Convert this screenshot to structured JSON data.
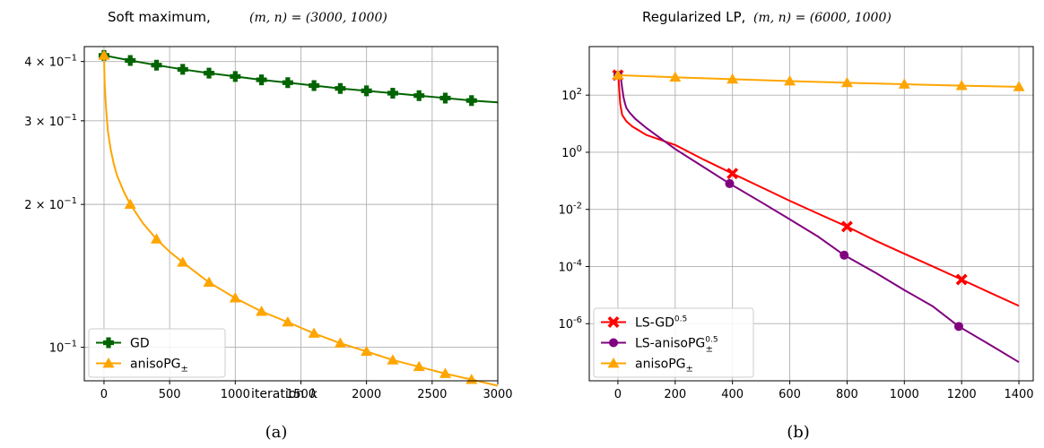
{
  "chart_data": [
    {
      "type": "line",
      "panel_label": "(a)",
      "title": "Soft maximum,",
      "title_math": "(m, n) = (3000, 1000)",
      "xlabel": "iteration",
      "xlabel_math": "k",
      "ylabel": "",
      "yscale": "log",
      "xlim": [
        -150,
        3000
      ],
      "ylim": [
        0.085,
        0.43
      ],
      "grid": true,
      "legend_position": "lower-left",
      "x_ticks": [
        "0",
        "500",
        "1000",
        "1500",
        "2000",
        "2500",
        "3000"
      ],
      "x_tick_values": [
        0,
        500,
        1000,
        1500,
        2000,
        2500,
        3000
      ],
      "y_ticks": [
        {
          "value": 0.4,
          "mantissa": "4",
          "exp": "−1"
        },
        {
          "value": 0.3,
          "mantissa": "3",
          "exp": "−1"
        },
        {
          "value": 0.2,
          "mantissa": "2",
          "exp": "−1"
        },
        {
          "value": 0.1,
          "mantissa": "10",
          "exp": "−1"
        }
      ],
      "series": [
        {
          "name": "GD",
          "sub": "",
          "sup": "",
          "color": "#006400",
          "marker": "plus",
          "x": [
            0,
            200,
            400,
            600,
            800,
            1000,
            1200,
            1400,
            1600,
            1800,
            2000,
            2200,
            2400,
            2600,
            2800,
            3000
          ],
          "y": [
            0.412,
            0.402,
            0.393,
            0.385,
            0.378,
            0.372,
            0.366,
            0.361,
            0.356,
            0.351,
            0.347,
            0.343,
            0.339,
            0.335,
            0.331,
            0.328
          ],
          "markers_x": [
            0,
            200,
            400,
            600,
            800,
            1000,
            1200,
            1400,
            1600,
            1800,
            2000,
            2200,
            2400,
            2600,
            2800
          ]
        },
        {
          "name": "anisoPG",
          "sub": "±",
          "sup": "",
          "color": "#FFA500",
          "marker": "triangle",
          "x": [
            0,
            5,
            15,
            30,
            50,
            75,
            100,
            150,
            200,
            300,
            400,
            500,
            600,
            800,
            1000,
            1200,
            1400,
            1600,
            1800,
            2000,
            2200,
            2400,
            2600,
            2800,
            3000
          ],
          "y": [
            0.412,
            0.36,
            0.32,
            0.285,
            0.262,
            0.243,
            0.23,
            0.213,
            0.2,
            0.182,
            0.169,
            0.159,
            0.151,
            0.137,
            0.127,
            0.119,
            0.113,
            0.107,
            0.102,
            0.098,
            0.094,
            0.091,
            0.088,
            0.0855,
            0.083
          ],
          "markers_x": [
            0,
            200,
            400,
            600,
            800,
            1000,
            1200,
            1400,
            1600,
            1800,
            2000,
            2200,
            2400,
            2600,
            2800
          ]
        }
      ]
    },
    {
      "type": "line",
      "panel_label": "(b)",
      "title": "Regularized LP,",
      "title_math": "(m, n) = (6000, 1000)",
      "xlabel": "",
      "ylabel": "",
      "yscale": "log",
      "xlim": [
        -100,
        1450
      ],
      "ylim": [
        1e-08,
        5000
      ],
      "grid": true,
      "legend_position": "lower-left",
      "x_ticks": [
        "0",
        "200",
        "400",
        "600",
        "800",
        "1000",
        "1200",
        "1400"
      ],
      "x_tick_values": [
        0,
        200,
        400,
        600,
        800,
        1000,
        1200,
        1400
      ],
      "y_ticks": [
        {
          "value": 100,
          "mantissa": "10",
          "exp": "2"
        },
        {
          "value": 1,
          "mantissa": "10",
          "exp": "0"
        },
        {
          "value": 0.01,
          "mantissa": "10",
          "exp": "-2"
        },
        {
          "value": 0.0001,
          "mantissa": "10",
          "exp": "-4"
        },
        {
          "value": 1e-06,
          "mantissa": "10",
          "exp": "-6"
        }
      ],
      "series": [
        {
          "name": "LS-GD",
          "sub": "",
          "sup": "0.5",
          "color": "#FF0000",
          "marker": "x",
          "x": [
            0,
            3,
            8,
            15,
            30,
            50,
            100,
            200,
            300,
            400,
            500,
            600,
            700,
            800,
            900,
            1000,
            1100,
            1200,
            1300,
            1400
          ],
          "y": [
            500,
            300,
            50,
            20,
            12,
            8,
            4,
            1.8,
            0.55,
            0.18,
            0.06,
            0.02,
            0.007,
            0.0025,
            0.0008,
            0.00028,
            0.0001,
            3.5e-05,
            1.2e-05,
            4.2e-06
          ],
          "markers_x": [
            0,
            400,
            800,
            1200
          ]
        },
        {
          "name": "LS-anisoPG",
          "sub": "±",
          "sup": "0.5",
          "color": "#800080",
          "marker": "circle",
          "x": [
            0,
            5,
            10,
            15,
            20,
            25,
            30,
            40,
            60,
            100,
            150,
            200,
            300,
            390,
            500,
            600,
            700,
            790,
            900,
            1000,
            1100,
            1190,
            1300,
            1400
          ],
          "y": [
            500,
            560,
            400,
            170,
            80,
            50,
            35,
            25,
            15,
            7,
            3,
            1.3,
            0.3,
            0.08,
            0.018,
            0.0045,
            0.0011,
            0.00025,
            6e-05,
            1.5e-05,
            4e-06,
            8e-07,
            1.8e-07,
            4.5e-08
          ],
          "markers_x": [
            0,
            390,
            790,
            1190
          ]
        },
        {
          "name": "anisoPG",
          "sub": "±",
          "sup": "",
          "color": "#FFA500",
          "marker": "triangle",
          "x": [
            0,
            200,
            400,
            600,
            800,
            1000,
            1200,
            1400
          ],
          "y": [
            500,
            420,
            360,
            310,
            270,
            240,
            215,
            195
          ],
          "markers_x": [
            0,
            200,
            400,
            600,
            800,
            1000,
            1200,
            1400
          ]
        }
      ]
    }
  ]
}
